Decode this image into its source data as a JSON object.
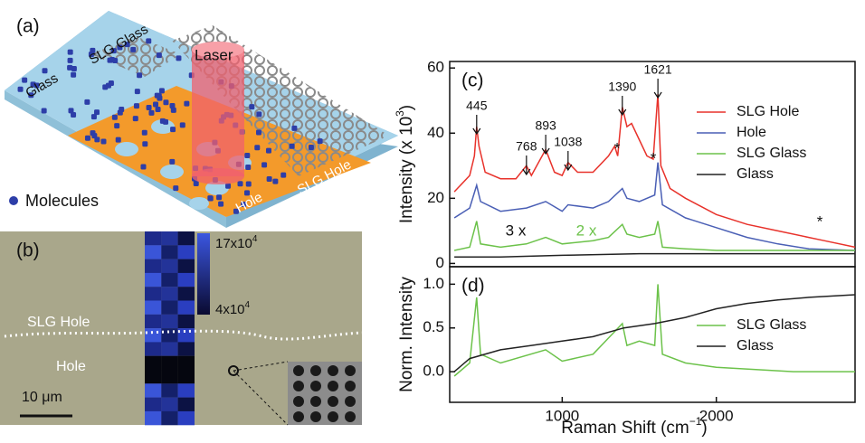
{
  "panel_a": {
    "label": "(a)",
    "glass": "Glass",
    "slg_glass": "SLG Glass",
    "laser": "Laser",
    "hole": "Hole",
    "slg_hole": "SLG Hole",
    "molecules": "Molecules"
  },
  "panel_b": {
    "label": "(b)",
    "slg_hole": "SLG Hole",
    "hole": "Hole",
    "scale_bar": "10 μm",
    "colorbar_max": "17x10",
    "colorbar_max_exp": "4",
    "colorbar_min": "4x10",
    "colorbar_min_exp": "4"
  },
  "chart_data": [
    {
      "type": "line",
      "panel_label": "(c)",
      "ylabel": "Intensity (x 10",
      "ylabel_exp": "3",
      "ylabel_end": ")",
      "xlim": [
        270,
        2900
      ],
      "ylim": [
        -1,
        62
      ],
      "yticks": [
        0,
        20,
        40,
        60
      ],
      "peaks": [
        445,
        768,
        893,
        1038,
        1390,
        1621
      ],
      "annotations": [
        "*",
        "*",
        "*",
        "3 x",
        "2 x"
      ],
      "series": [
        {
          "name": "SLG Hole",
          "color": "#e8322b",
          "x": [
            300,
            400,
            430,
            445,
            460,
            500,
            600,
            700,
            768,
            800,
            893,
            950,
            1000,
            1038,
            1100,
            1200,
            1300,
            1340,
            1360,
            1390,
            1420,
            1450,
            1500,
            1550,
            1590,
            1621,
            1640,
            1700,
            1800,
            2000,
            2200,
            2400,
            2600,
            2700,
            2900
          ],
          "values": [
            22,
            27,
            33,
            42,
            36,
            28,
            26,
            26,
            30,
            27,
            35,
            28,
            27,
            31,
            28,
            28,
            33,
            36,
            33,
            48,
            42,
            43,
            38,
            33,
            32,
            52,
            30,
            23,
            20,
            15,
            12,
            10,
            8,
            7,
            5
          ]
        },
        {
          "name": "Hole",
          "color": "#4a5fb5",
          "x": [
            300,
            400,
            445,
            470,
            600,
            768,
            893,
            1000,
            1038,
            1200,
            1300,
            1390,
            1420,
            1500,
            1600,
            1621,
            1650,
            1800,
            2000,
            2200,
            2400,
            2600,
            2900
          ],
          "values": [
            14,
            17,
            24,
            19,
            16,
            17,
            19,
            16,
            18,
            17,
            19,
            23,
            20,
            19,
            21,
            31,
            18,
            14,
            11,
            8,
            6,
            4.5,
            4
          ]
        },
        {
          "name": "SLG Glass",
          "color": "#6cc24a",
          "x": [
            300,
            400,
            445,
            470,
            600,
            768,
            893,
            1000,
            1200,
            1300,
            1390,
            1420,
            1500,
            1600,
            1621,
            1650,
            1800,
            2000,
            2900
          ],
          "values": [
            4,
            5,
            13,
            6,
            5,
            6,
            8,
            6,
            7,
            8,
            12,
            9,
            8,
            9,
            13,
            5,
            4.5,
            4,
            4
          ]
        },
        {
          "name": "Glass",
          "color": "#222222",
          "x": [
            300,
            600,
            1000,
            1500,
            2000,
            2500,
            2900
          ],
          "values": [
            2,
            2,
            2.5,
            3,
            3,
            3,
            3
          ]
        }
      ]
    },
    {
      "type": "line",
      "panel_label": "(d)",
      "ylabel": "Norm. Intensity",
      "xlabel": "Raman Shift (cm",
      "xlabel_exp": "−1",
      "xlabel_end": ")",
      "xlim": [
        270,
        2900
      ],
      "ylim": [
        -0.35,
        1.2
      ],
      "yticks": [
        {
          "value": 0,
          "label": "0.0"
        },
        {
          "value": 0.5,
          "label": "0.5"
        },
        {
          "value": 1,
          "label": "1.0"
        }
      ],
      "xticks": [
        1000,
        2000
      ],
      "series": [
        {
          "name": "SLG Glass",
          "color": "#6cc24a",
          "x": [
            300,
            400,
            445,
            470,
            600,
            893,
            1000,
            1200,
            1390,
            1420,
            1500,
            1600,
            1621,
            1650,
            1800,
            2000,
            2500,
            2900
          ],
          "values": [
            -0.05,
            0.1,
            0.85,
            0.2,
            0.1,
            0.25,
            0.12,
            0.2,
            0.55,
            0.3,
            0.35,
            0.3,
            1.0,
            0.2,
            0.1,
            0.05,
            0.0,
            0.0
          ]
        },
        {
          "name": "Glass",
          "color": "#222222",
          "x": [
            300,
            400,
            600,
            800,
            1000,
            1200,
            1400,
            1600,
            1800,
            2000,
            2200,
            2400,
            2600,
            2900
          ],
          "values": [
            0,
            0.15,
            0.25,
            0.3,
            0.35,
            0.4,
            0.5,
            0.55,
            0.62,
            0.72,
            0.78,
            0.82,
            0.85,
            0.88
          ]
        }
      ]
    }
  ]
}
